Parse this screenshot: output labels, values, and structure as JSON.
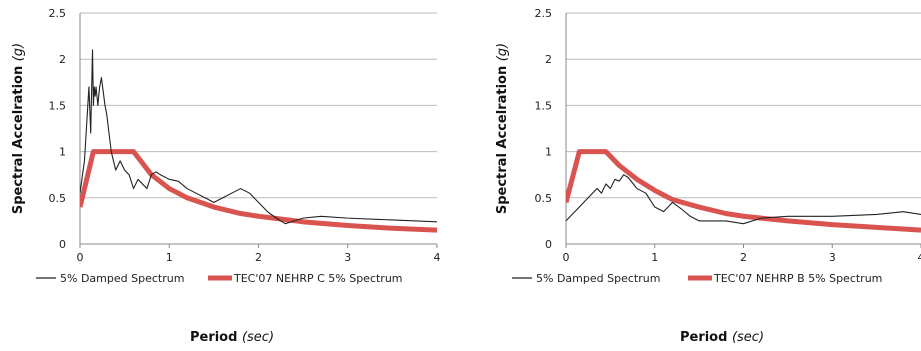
{
  "chart_data": [
    {
      "type": "line",
      "ylabel_main": "Spectral Accelration",
      "ylabel_unit": "(g)",
      "xlabel_main": "Period",
      "xlabel_unit": "(sec)",
      "xlim": [
        0,
        4
      ],
      "ylim": [
        0,
        2.5
      ],
      "xticks": [
        "0",
        "1",
        "2",
        "3",
        "4"
      ],
      "yticks": [
        "0",
        "0.5",
        "1",
        "1.5",
        "2",
        "2.5"
      ],
      "grid": true,
      "legend": "bottom",
      "colors": {
        "damped": "#222222",
        "code": "#d9534f"
      },
      "series": [
        {
          "name": "5% Damped Spectrum",
          "x": [
            0,
            0.05,
            0.1,
            0.12,
            0.14,
            0.15,
            0.16,
            0.17,
            0.18,
            0.2,
            0.22,
            0.24,
            0.26,
            0.28,
            0.3,
            0.35,
            0.4,
            0.45,
            0.5,
            0.55,
            0.6,
            0.65,
            0.7,
            0.75,
            0.8,
            0.85,
            0.9,
            1.0,
            1.1,
            1.2,
            1.3,
            1.4,
            1.5,
            1.6,
            1.7,
            1.8,
            1.9,
            2.0,
            2.1,
            2.2,
            2.3,
            2.4,
            2.5,
            2.7,
            3.0,
            3.5,
            4.0
          ],
          "values": [
            0.55,
            0.9,
            1.7,
            1.2,
            2.1,
            1.5,
            1.7,
            1.6,
            1.7,
            1.5,
            1.7,
            1.8,
            1.65,
            1.5,
            1.4,
            1.0,
            0.8,
            0.9,
            0.8,
            0.75,
            0.6,
            0.7,
            0.65,
            0.6,
            0.75,
            0.78,
            0.75,
            0.7,
            0.68,
            0.6,
            0.55,
            0.5,
            0.45,
            0.5,
            0.55,
            0.6,
            0.55,
            0.45,
            0.35,
            0.28,
            0.22,
            0.25,
            0.28,
            0.3,
            0.28,
            0.26,
            0.24
          ]
        },
        {
          "name": "TEC'07 NEHRP C 5% Spectrum",
          "x": [
            0,
            0.15,
            0.6,
            0.8,
            1.0,
            1.2,
            1.5,
            1.8,
            2.0,
            2.5,
            3.0,
            3.5,
            4.0
          ],
          "values": [
            0.4,
            1.0,
            1.0,
            0.75,
            0.6,
            0.5,
            0.4,
            0.33,
            0.3,
            0.24,
            0.2,
            0.17,
            0.15
          ]
        }
      ]
    },
    {
      "type": "line",
      "ylabel_main": "Spectral Accelration",
      "ylabel_unit": "(g)",
      "xlabel_main": "Period",
      "xlabel_unit": "(sec)",
      "xlim": [
        0,
        4
      ],
      "ylim": [
        0,
        2.5
      ],
      "xticks": [
        "0",
        "1",
        "2",
        "3",
        "4"
      ],
      "yticks": [
        "0",
        "0.5",
        "1",
        "1.5",
        "2",
        "2.5"
      ],
      "grid": true,
      "legend": "bottom",
      "colors": {
        "damped": "#222222",
        "code": "#d9534f"
      },
      "series": [
        {
          "name": "5% Damped Spectrum",
          "x": [
            0,
            0.1,
            0.2,
            0.3,
            0.35,
            0.4,
            0.45,
            0.5,
            0.55,
            0.6,
            0.65,
            0.7,
            0.8,
            0.9,
            1.0,
            1.1,
            1.2,
            1.3,
            1.4,
            1.5,
            1.6,
            1.8,
            2.0,
            2.2,
            2.5,
            3.0,
            3.5,
            3.8,
            4.0
          ],
          "values": [
            0.25,
            0.35,
            0.45,
            0.55,
            0.6,
            0.55,
            0.65,
            0.6,
            0.7,
            0.68,
            0.75,
            0.72,
            0.6,
            0.55,
            0.4,
            0.35,
            0.45,
            0.38,
            0.3,
            0.25,
            0.25,
            0.25,
            0.22,
            0.28,
            0.3,
            0.3,
            0.32,
            0.35,
            0.32
          ]
        },
        {
          "name": "TEC'07 NEHRP B 5% Spectrum",
          "x": [
            0,
            0.15,
            0.45,
            0.6,
            0.8,
            1.0,
            1.2,
            1.5,
            1.8,
            2.0,
            2.5,
            3.0,
            3.5,
            4.0
          ],
          "values": [
            0.45,
            1.0,
            1.0,
            0.85,
            0.7,
            0.58,
            0.48,
            0.4,
            0.33,
            0.3,
            0.25,
            0.21,
            0.18,
            0.15
          ]
        }
      ]
    }
  ]
}
